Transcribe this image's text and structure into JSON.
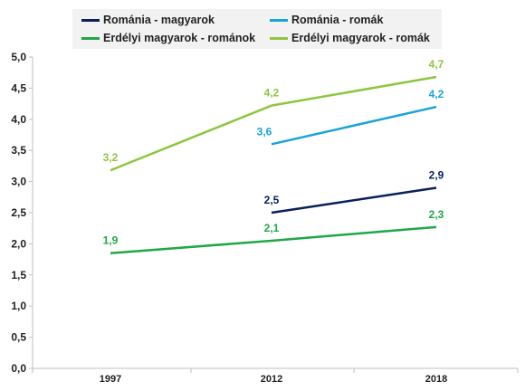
{
  "chart_data": {
    "type": "line",
    "title": "",
    "xlabel": "",
    "ylabel": "",
    "categories": [
      "1997",
      "2012",
      "2018"
    ],
    "ylim": [
      0,
      5
    ],
    "yticks": [
      "0,0",
      "0,5",
      "1,0",
      "1,5",
      "2,0",
      "2,5",
      "3,0",
      "3,5",
      "4,0",
      "4,5",
      "5,0"
    ],
    "grid": false,
    "legend_position": "top",
    "series": [
      {
        "name": "Románia - magyarok",
        "color": "#0a1f5c",
        "values": [
          null,
          2.5,
          2.9
        ],
        "labels": [
          "",
          "2,5",
          "2,9"
        ]
      },
      {
        "name": "Románia - romák",
        "color": "#1aa3d9",
        "values": [
          null,
          3.6,
          4.2
        ],
        "labels": [
          "",
          "3,6",
          "4,2"
        ]
      },
      {
        "name": "Erdélyi magyarok - románok",
        "color": "#1ea845",
        "values": [
          1.85,
          2.05,
          2.27
        ],
        "labels": [
          "1,9",
          "2,1",
          "2,3"
        ]
      },
      {
        "name": "Erdélyi magyarok - romák",
        "color": "#8dc63f",
        "values": [
          3.18,
          4.22,
          4.68
        ],
        "labels": [
          "3,2",
          "4,2",
          "4,7"
        ]
      }
    ]
  }
}
